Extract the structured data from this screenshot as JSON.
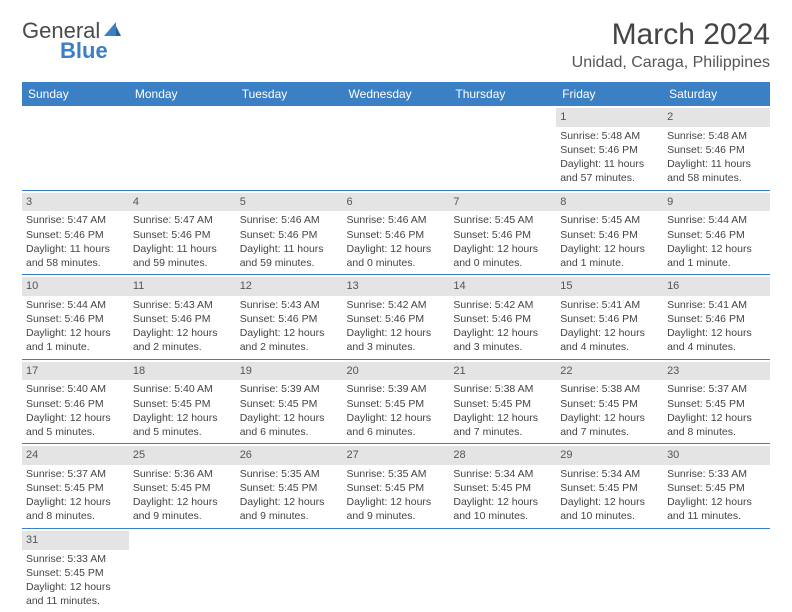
{
  "logo": {
    "text1": "General",
    "text2": "Blue"
  },
  "title": "March 2024",
  "location": "Unidad, Caraga, Philippines",
  "header_bg": "#3b7fc4",
  "days_of_week": [
    "Sunday",
    "Monday",
    "Tuesday",
    "Wednesday",
    "Thursday",
    "Friday",
    "Saturday"
  ],
  "weeks": [
    [
      {
        "n": "",
        "sr": "",
        "ss": "",
        "dl": ""
      },
      {
        "n": "",
        "sr": "",
        "ss": "",
        "dl": ""
      },
      {
        "n": "",
        "sr": "",
        "ss": "",
        "dl": ""
      },
      {
        "n": "",
        "sr": "",
        "ss": "",
        "dl": ""
      },
      {
        "n": "",
        "sr": "",
        "ss": "",
        "dl": ""
      },
      {
        "n": "1",
        "sr": "Sunrise: 5:48 AM",
        "ss": "Sunset: 5:46 PM",
        "dl": "Daylight: 11 hours and 57 minutes."
      },
      {
        "n": "2",
        "sr": "Sunrise: 5:48 AM",
        "ss": "Sunset: 5:46 PM",
        "dl": "Daylight: 11 hours and 58 minutes."
      }
    ],
    [
      {
        "n": "3",
        "sr": "Sunrise: 5:47 AM",
        "ss": "Sunset: 5:46 PM",
        "dl": "Daylight: 11 hours and 58 minutes."
      },
      {
        "n": "4",
        "sr": "Sunrise: 5:47 AM",
        "ss": "Sunset: 5:46 PM",
        "dl": "Daylight: 11 hours and 59 minutes."
      },
      {
        "n": "5",
        "sr": "Sunrise: 5:46 AM",
        "ss": "Sunset: 5:46 PM",
        "dl": "Daylight: 11 hours and 59 minutes."
      },
      {
        "n": "6",
        "sr": "Sunrise: 5:46 AM",
        "ss": "Sunset: 5:46 PM",
        "dl": "Daylight: 12 hours and 0 minutes."
      },
      {
        "n": "7",
        "sr": "Sunrise: 5:45 AM",
        "ss": "Sunset: 5:46 PM",
        "dl": "Daylight: 12 hours and 0 minutes."
      },
      {
        "n": "8",
        "sr": "Sunrise: 5:45 AM",
        "ss": "Sunset: 5:46 PM",
        "dl": "Daylight: 12 hours and 1 minute."
      },
      {
        "n": "9",
        "sr": "Sunrise: 5:44 AM",
        "ss": "Sunset: 5:46 PM",
        "dl": "Daylight: 12 hours and 1 minute."
      }
    ],
    [
      {
        "n": "10",
        "sr": "Sunrise: 5:44 AM",
        "ss": "Sunset: 5:46 PM",
        "dl": "Daylight: 12 hours and 1 minute."
      },
      {
        "n": "11",
        "sr": "Sunrise: 5:43 AM",
        "ss": "Sunset: 5:46 PM",
        "dl": "Daylight: 12 hours and 2 minutes."
      },
      {
        "n": "12",
        "sr": "Sunrise: 5:43 AM",
        "ss": "Sunset: 5:46 PM",
        "dl": "Daylight: 12 hours and 2 minutes."
      },
      {
        "n": "13",
        "sr": "Sunrise: 5:42 AM",
        "ss": "Sunset: 5:46 PM",
        "dl": "Daylight: 12 hours and 3 minutes."
      },
      {
        "n": "14",
        "sr": "Sunrise: 5:42 AM",
        "ss": "Sunset: 5:46 PM",
        "dl": "Daylight: 12 hours and 3 minutes."
      },
      {
        "n": "15",
        "sr": "Sunrise: 5:41 AM",
        "ss": "Sunset: 5:46 PM",
        "dl": "Daylight: 12 hours and 4 minutes."
      },
      {
        "n": "16",
        "sr": "Sunrise: 5:41 AM",
        "ss": "Sunset: 5:46 PM",
        "dl": "Daylight: 12 hours and 4 minutes."
      }
    ],
    [
      {
        "n": "17",
        "sr": "Sunrise: 5:40 AM",
        "ss": "Sunset: 5:46 PM",
        "dl": "Daylight: 12 hours and 5 minutes."
      },
      {
        "n": "18",
        "sr": "Sunrise: 5:40 AM",
        "ss": "Sunset: 5:45 PM",
        "dl": "Daylight: 12 hours and 5 minutes."
      },
      {
        "n": "19",
        "sr": "Sunrise: 5:39 AM",
        "ss": "Sunset: 5:45 PM",
        "dl": "Daylight: 12 hours and 6 minutes."
      },
      {
        "n": "20",
        "sr": "Sunrise: 5:39 AM",
        "ss": "Sunset: 5:45 PM",
        "dl": "Daylight: 12 hours and 6 minutes."
      },
      {
        "n": "21",
        "sr": "Sunrise: 5:38 AM",
        "ss": "Sunset: 5:45 PM",
        "dl": "Daylight: 12 hours and 7 minutes."
      },
      {
        "n": "22",
        "sr": "Sunrise: 5:38 AM",
        "ss": "Sunset: 5:45 PM",
        "dl": "Daylight: 12 hours and 7 minutes."
      },
      {
        "n": "23",
        "sr": "Sunrise: 5:37 AM",
        "ss": "Sunset: 5:45 PM",
        "dl": "Daylight: 12 hours and 8 minutes."
      }
    ],
    [
      {
        "n": "24",
        "sr": "Sunrise: 5:37 AM",
        "ss": "Sunset: 5:45 PM",
        "dl": "Daylight: 12 hours and 8 minutes."
      },
      {
        "n": "25",
        "sr": "Sunrise: 5:36 AM",
        "ss": "Sunset: 5:45 PM",
        "dl": "Daylight: 12 hours and 9 minutes."
      },
      {
        "n": "26",
        "sr": "Sunrise: 5:35 AM",
        "ss": "Sunset: 5:45 PM",
        "dl": "Daylight: 12 hours and 9 minutes."
      },
      {
        "n": "27",
        "sr": "Sunrise: 5:35 AM",
        "ss": "Sunset: 5:45 PM",
        "dl": "Daylight: 12 hours and 9 minutes."
      },
      {
        "n": "28",
        "sr": "Sunrise: 5:34 AM",
        "ss": "Sunset: 5:45 PM",
        "dl": "Daylight: 12 hours and 10 minutes."
      },
      {
        "n": "29",
        "sr": "Sunrise: 5:34 AM",
        "ss": "Sunset: 5:45 PM",
        "dl": "Daylight: 12 hours and 10 minutes."
      },
      {
        "n": "30",
        "sr": "Sunrise: 5:33 AM",
        "ss": "Sunset: 5:45 PM",
        "dl": "Daylight: 12 hours and 11 minutes."
      }
    ],
    [
      {
        "n": "31",
        "sr": "Sunrise: 5:33 AM",
        "ss": "Sunset: 5:45 PM",
        "dl": "Daylight: 12 hours and 11 minutes."
      },
      {
        "n": "",
        "sr": "",
        "ss": "",
        "dl": ""
      },
      {
        "n": "",
        "sr": "",
        "ss": "",
        "dl": ""
      },
      {
        "n": "",
        "sr": "",
        "ss": "",
        "dl": ""
      },
      {
        "n": "",
        "sr": "",
        "ss": "",
        "dl": ""
      },
      {
        "n": "",
        "sr": "",
        "ss": "",
        "dl": ""
      },
      {
        "n": "",
        "sr": "",
        "ss": "",
        "dl": ""
      }
    ]
  ]
}
